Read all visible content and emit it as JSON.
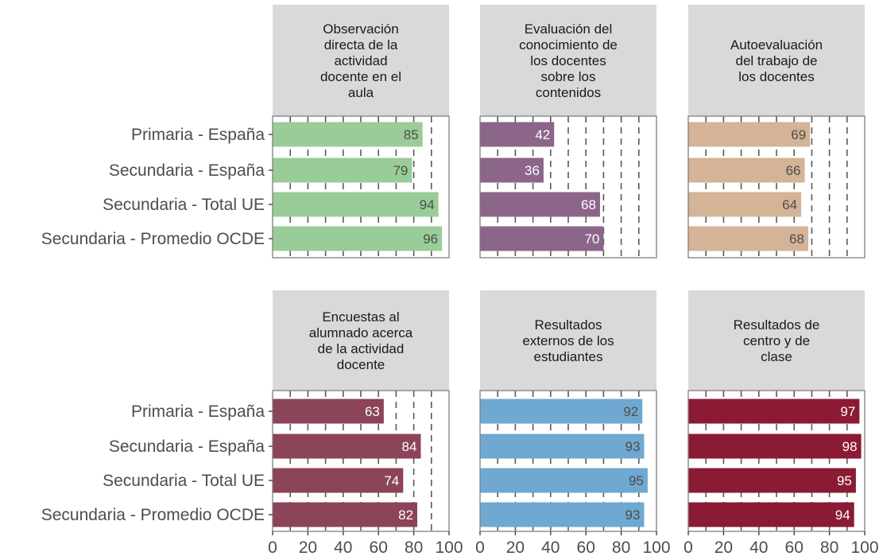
{
  "colors": {
    "strip_bg": "#d9d9d9",
    "panel_border": "#7f7f7f",
    "text": "#4d4d4d",
    "gridline": "#595959"
  },
  "chart_data": {
    "type": "bar",
    "orientation": "horizontal",
    "facet_layout": "2 rows x 3 columns",
    "categories": [
      "Primaria - España",
      "Secundaria - España",
      "Secundaria - Total UE",
      "Secundaria - Promedio OCDE"
    ],
    "xlim": [
      0,
      100
    ],
    "xticks": [
      "0",
      "20",
      "40",
      "60",
      "80",
      "100"
    ],
    "grid": "dashed vertical lines at 10-unit steps",
    "panels": [
      {
        "title": "Observación directa de la actividad docente en el aula",
        "title_lines": [
          "Observación",
          "directa de la",
          "actividad",
          "docente en el",
          "aula"
        ],
        "color": "#99cc99",
        "label_color": "#4d4d4d",
        "values": [
          85,
          79,
          94,
          96
        ]
      },
      {
        "title": "Evaluación del conocimiento de los docentes sobre los contenidos",
        "title_lines": [
          "Evaluación del",
          "conocimiento de",
          "los docentes",
          "sobre los",
          "contenidos"
        ],
        "color": "#8b6689",
        "label_color": "#ffffff",
        "values": [
          42,
          36,
          68,
          70
        ]
      },
      {
        "title": "Autoevaluación del trabajo de los docentes",
        "title_lines": [
          "Autoevaluación",
          "del trabajo de",
          "los docentes"
        ],
        "color": "#d4b397",
        "label_color": "#4d4d4d",
        "values": [
          69,
          66,
          64,
          68
        ]
      },
      {
        "title": "Encuestas al alumnado acerca de la actividad docente",
        "title_lines": [
          "Encuestas al",
          "alumnado acerca",
          "de la actividad",
          "docente"
        ],
        "color": "#8b4458",
        "label_color": "#ffffff",
        "values": [
          63,
          84,
          74,
          82
        ]
      },
      {
        "title": "Resultados externos de los estudiantes",
        "title_lines": [
          "Resultados",
          "externos de los",
          "estudiantes"
        ],
        "color": "#6fa8d0",
        "label_color": "#4d4d4d",
        "values": [
          92,
          93,
          95,
          93
        ]
      },
      {
        "title": "Resultados de centro y de clase",
        "title_lines": [
          "Resultados de",
          "centro y de",
          "clase"
        ],
        "color": "#8b1a35",
        "label_color": "#ffffff",
        "values": [
          97,
          98,
          95,
          94
        ]
      }
    ]
  }
}
